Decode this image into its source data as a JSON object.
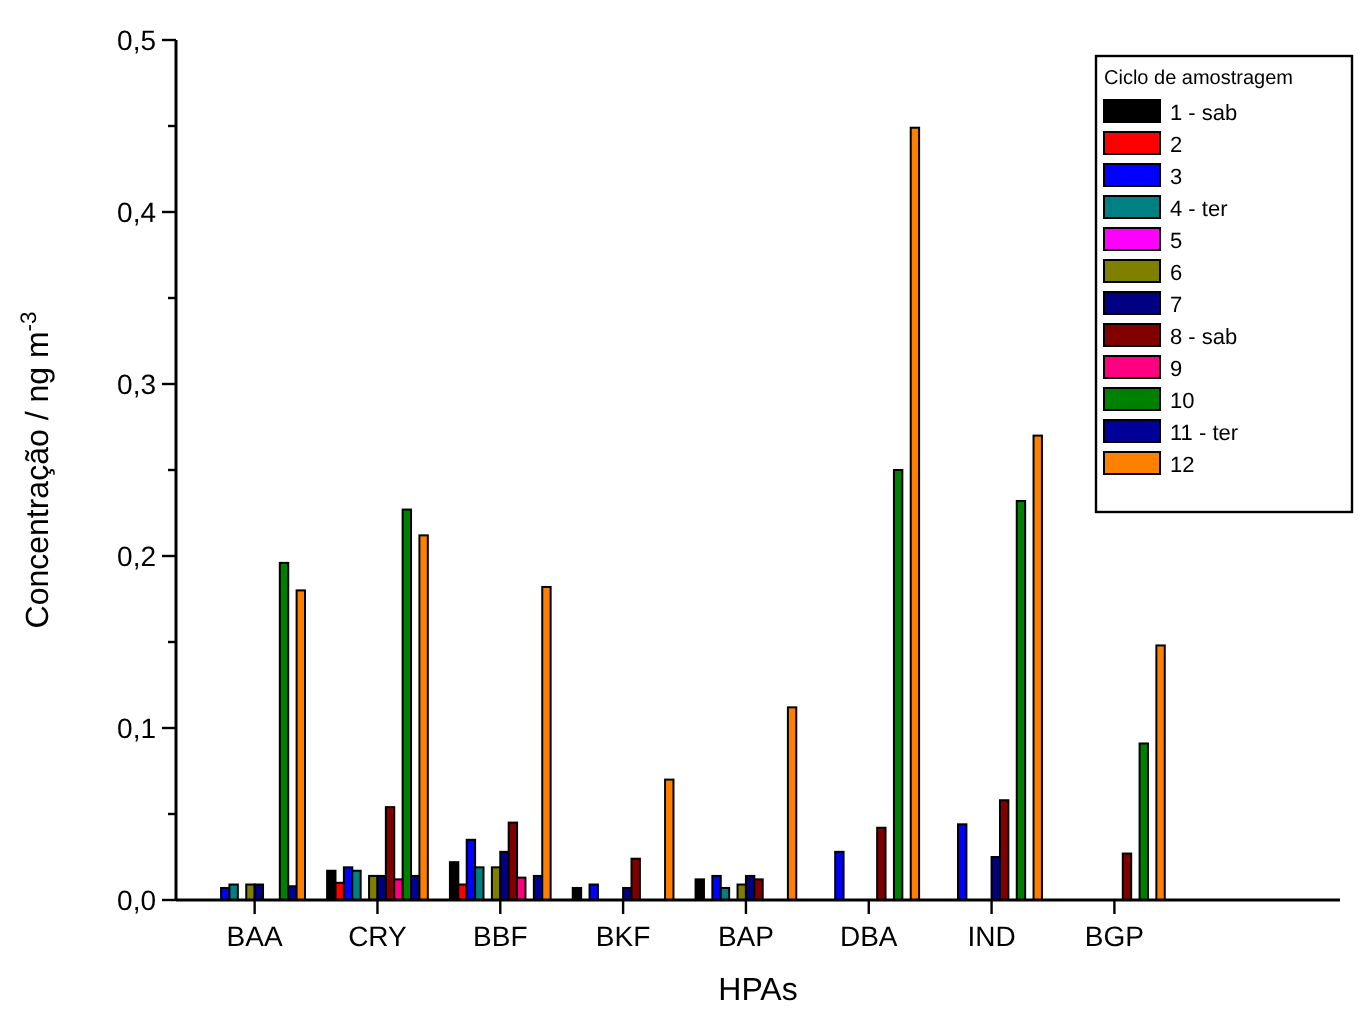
{
  "chart_data": {
    "type": "bar",
    "xlabel": "HPAs",
    "ylabel": "Concentração / ng m$^{-3}$",
    "legend_title": "Ciclo de amostragem",
    "legend": "top right",
    "categories": [
      "BAA",
      "CRY",
      "BBF",
      "BKF",
      "BAP",
      "DBA",
      "IND",
      "BGP"
    ],
    "ylim": [
      0,
      0.5
    ],
    "yticks": [
      {
        "value": 0,
        "label": "0,0"
      },
      {
        "value": 0.05,
        "label": null
      },
      {
        "value": 0.1,
        "label": "0,1"
      },
      {
        "value": 0.15,
        "label": null
      },
      {
        "value": 0.2,
        "label": "0,2"
      },
      {
        "value": 0.25,
        "label": null
      },
      {
        "value": 0.3,
        "label": "0,3"
      },
      {
        "value": 0.35,
        "label": null
      },
      {
        "value": 0.4,
        "label": "0,4"
      },
      {
        "value": 0.45,
        "label": null
      },
      {
        "value": 0.5,
        "label": "0,5"
      }
    ],
    "series": [
      {
        "name": "1 - sab",
        "color": "#000000",
        "values": [
          null,
          0.017,
          0.022,
          0.007,
          0.012,
          null,
          null,
          null
        ]
      },
      {
        "name": "2",
        "color": "#ff0000",
        "values": [
          null,
          0.01,
          0.009,
          null,
          null,
          null,
          null,
          null
        ]
      },
      {
        "name": "3",
        "color": "#0000ff",
        "values": [
          0.007,
          0.019,
          0.035,
          0.009,
          0.014,
          0.028,
          0.044,
          null
        ]
      },
      {
        "name": "4 - ter",
        "color": "#008080",
        "values": [
          0.009,
          0.017,
          0.019,
          null,
          0.007,
          null,
          null,
          null
        ]
      },
      {
        "name": "5",
        "color": "#ff00ff",
        "values": [
          null,
          null,
          null,
          null,
          null,
          null,
          null,
          null
        ]
      },
      {
        "name": "6",
        "color": "#808000",
        "values": [
          0.009,
          0.014,
          0.019,
          null,
          0.009,
          null,
          null,
          null
        ]
      },
      {
        "name": "7",
        "color": "#000080",
        "values": [
          0.009,
          0.014,
          0.028,
          0.007,
          0.014,
          null,
          0.025,
          null
        ]
      },
      {
        "name": "8 - sab",
        "color": "#800000",
        "values": [
          null,
          0.054,
          0.045,
          0.024,
          0.012,
          0.042,
          0.058,
          0.027
        ]
      },
      {
        "name": "9",
        "color": "#ff0080",
        "values": [
          null,
          0.012,
          0.013,
          null,
          null,
          null,
          null,
          null
        ]
      },
      {
        "name": "10",
        "color": "#008000",
        "values": [
          0.196,
          0.227,
          null,
          null,
          null,
          0.25,
          0.232,
          0.091
        ]
      },
      {
        "name": "11 - ter",
        "color": "#000099",
        "values": [
          0.008,
          0.014,
          0.014,
          null,
          null,
          null,
          null,
          null
        ]
      },
      {
        "name": "12",
        "color": "#ff8000",
        "values": [
          0.18,
          0.212,
          0.182,
          0.07,
          0.112,
          0.449,
          0.27,
          0.148
        ]
      }
    ]
  }
}
